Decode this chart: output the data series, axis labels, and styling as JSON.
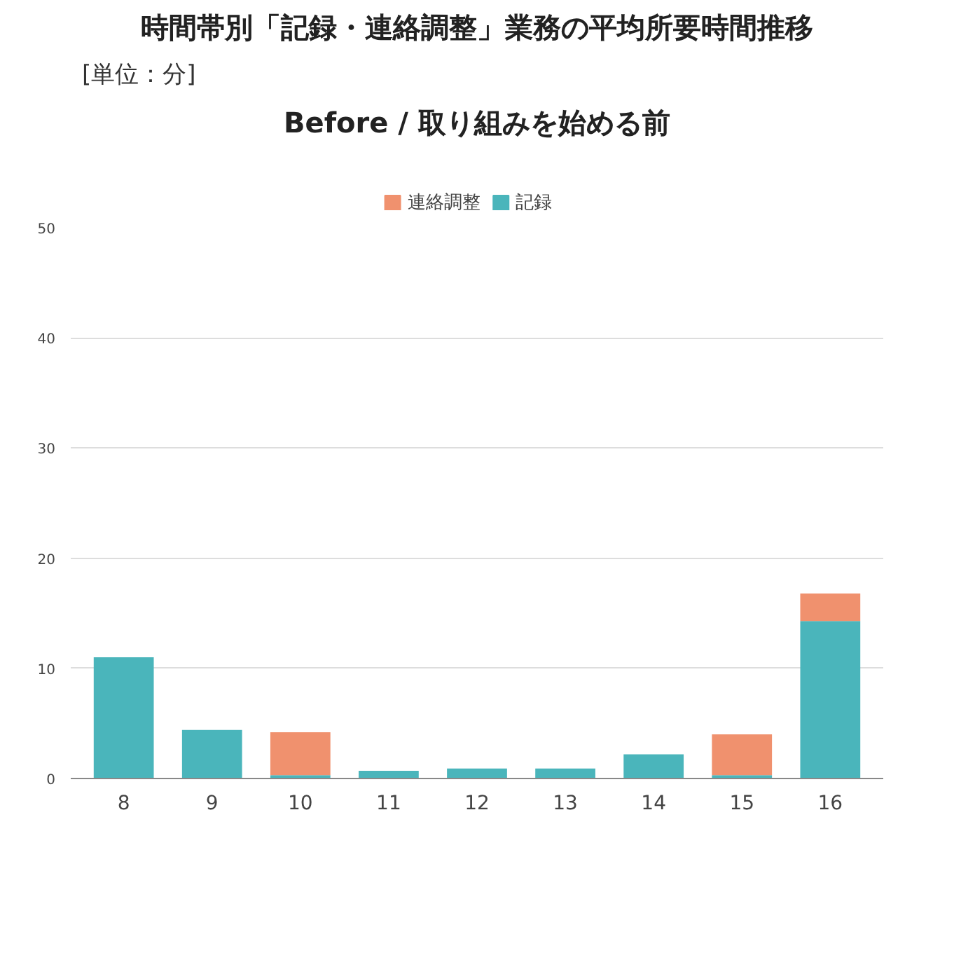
{
  "chart_data": {
    "type": "bar",
    "title": "時間帯別「記録・連絡調整」業務の平均所要時間推移",
    "subtitle": "Before / 取り組みを始める前",
    "annotations": [
      "[単位：分]"
    ],
    "categories": [
      "8",
      "9",
      "10",
      "11",
      "12",
      "13",
      "14",
      "15",
      "16"
    ],
    "series": [
      {
        "name": "記録",
        "color": "#4ab5bb",
        "values": [
          11,
          4.4,
          0.3,
          0.7,
          0.9,
          0.9,
          2.2,
          0.3,
          14.3
        ]
      },
      {
        "name": "連絡調整",
        "color": "#f0916e",
        "values": [
          0,
          0,
          3.9,
          0,
          0,
          0,
          0,
          3.7,
          2.5
        ]
      }
    ],
    "stacked": true,
    "ylim": [
      0,
      50
    ],
    "yticks": [
      0,
      10,
      20,
      30,
      40,
      50
    ],
    "grid": "y",
    "legend": "top"
  }
}
